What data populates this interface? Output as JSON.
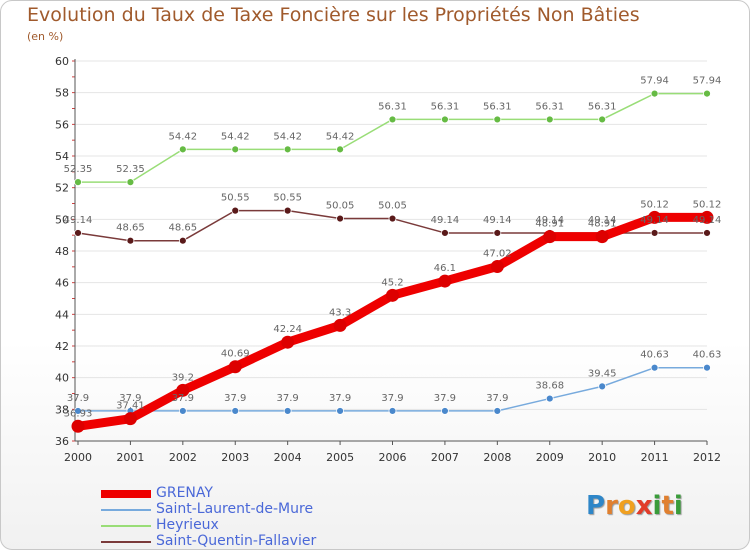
{
  "title": "Evolution du Taux de Taxe Foncière sur les Propriétés Non Bâties",
  "unit_label": "(en %)",
  "logo": {
    "text": "Proxiti",
    "letters": [
      {
        "ch": "P",
        "color": "#2e86c8"
      },
      {
        "ch": "r",
        "color": "#e08030"
      },
      {
        "ch": "o",
        "color": "#f0a020"
      },
      {
        "ch": "x",
        "color": "#e23c2a"
      },
      {
        "ch": "i",
        "color": "#3a9c3a"
      },
      {
        "ch": "t",
        "color": "#e08030"
      },
      {
        "ch": "i",
        "color": "#3a9c3a"
      }
    ]
  },
  "chart_data": {
    "type": "line",
    "title": "Evolution du Taux de Taxe Foncière sur les Propriétés Non Bâties",
    "ylabel": "(en %)",
    "xlabel": "",
    "ylim": [
      36,
      60
    ],
    "yticks": [
      "36",
      "38",
      "40",
      "42",
      "44",
      "46",
      "48",
      "50",
      "52",
      "54",
      "56",
      "58",
      "60"
    ],
    "x": [
      "2000",
      "2001",
      "2002",
      "2003",
      "2004",
      "2005",
      "2006",
      "2007",
      "2008",
      "2009",
      "2010",
      "2011",
      "2012"
    ],
    "grid": "horizontal",
    "legend_position": "bottom-left",
    "series": [
      {
        "name": "Heyrieux",
        "color": "#99dd77",
        "marker_color": "#66bb44",
        "values": [
          52.35,
          52.35,
          54.42,
          54.42,
          54.42,
          54.42,
          56.31,
          56.31,
          56.31,
          56.31,
          56.31,
          57.94,
          57.94
        ],
        "labels": [
          "52.35",
          "52.35",
          "54.42",
          "54.42",
          "54.42",
          "54.42",
          "56.31",
          "56.31",
          "56.31",
          "56.31",
          "56.31",
          "57.94",
          "57.94"
        ]
      },
      {
        "name": "Saint-Quentin-Fallavier",
        "color": "#7a3a3a",
        "marker_color": "#5a1a1a",
        "values": [
          49.14,
          48.65,
          48.65,
          50.55,
          50.55,
          50.05,
          50.05,
          49.14,
          49.14,
          49.14,
          49.14,
          49.14,
          49.14
        ],
        "labels": [
          "49.14",
          "48.65",
          "48.65",
          "50.55",
          "50.55",
          "50.05",
          "50.05",
          "49.14",
          "49.14",
          "49.14",
          "49.14",
          "49.14",
          "49.14"
        ]
      },
      {
        "name": "Saint-Laurent-de-Mure",
        "color": "#77aadd",
        "marker_color": "#4a88cc",
        "values": [
          37.9,
          37.9,
          37.9,
          37.9,
          37.9,
          37.9,
          37.9,
          37.9,
          37.9,
          38.68,
          39.45,
          40.63,
          40.63
        ],
        "labels": [
          "37.9",
          "37.9",
          "37.9",
          "37.9",
          "37.9",
          "37.9",
          "37.9",
          "37.9",
          "37.9",
          "38.68",
          "39.45",
          "40.63",
          "40.63"
        ]
      },
      {
        "name": "GRENAY",
        "color": "#ee0000",
        "marker_color": "#dd0000",
        "values": [
          36.93,
          37.41,
          39.2,
          40.69,
          42.24,
          43.3,
          45.2,
          46.1,
          47.02,
          48.91,
          48.91,
          50.12,
          50.12
        ],
        "labels": [
          "36.93",
          "37.41",
          "39.2",
          "40.69",
          "42.24",
          "43.3",
          "45.2",
          "46.1",
          "47.02",
          "48.91",
          "48.91",
          "50.12",
          "50.12"
        ]
      }
    ]
  },
  "legend": [
    {
      "name": "GRENAY",
      "color": "#ee0000"
    },
    {
      "name": "Saint-Laurent-de-Mure",
      "color": "#77aadd"
    },
    {
      "name": "Heyrieux",
      "color": "#99dd77"
    },
    {
      "name": "Saint-Quentin-Fallavier",
      "color": "#7a3a3a"
    }
  ]
}
